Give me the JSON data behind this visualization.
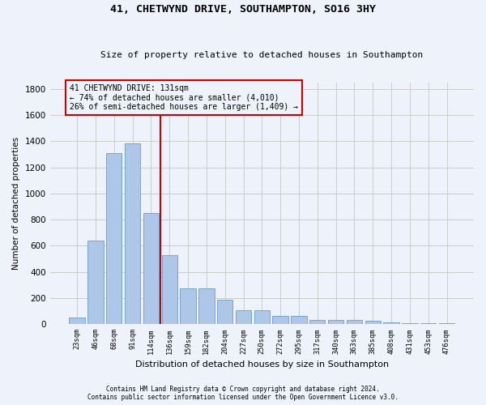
{
  "title": "41, CHETWYND DRIVE, SOUTHAMPTON, SO16 3HY",
  "subtitle": "Size of property relative to detached houses in Southampton",
  "xlabel": "Distribution of detached houses by size in Southampton",
  "ylabel": "Number of detached properties",
  "footnote1": "Contains HM Land Registry data © Crown copyright and database right 2024.",
  "footnote2": "Contains public sector information licensed under the Open Government Licence v3.0.",
  "annotation_line1": "41 CHETWYND DRIVE: 131sqm",
  "annotation_line2": "← 74% of detached houses are smaller (4,010)",
  "annotation_line3": "26% of semi-detached houses are larger (1,409) →",
  "bar_categories": [
    "23sqm",
    "46sqm",
    "68sqm",
    "91sqm",
    "114sqm",
    "136sqm",
    "159sqm",
    "182sqm",
    "204sqm",
    "227sqm",
    "250sqm",
    "272sqm",
    "295sqm",
    "317sqm",
    "340sqm",
    "363sqm",
    "385sqm",
    "408sqm",
    "431sqm",
    "453sqm",
    "476sqm"
  ],
  "bar_values": [
    50,
    640,
    1310,
    1380,
    850,
    530,
    275,
    275,
    185,
    105,
    105,
    65,
    65,
    35,
    35,
    30,
    25,
    15,
    10,
    10,
    10
  ],
  "bar_color": "#aec6e8",
  "bar_edge_color": "#5a8fc0",
  "vline_color": "#cc0000",
  "vline_index": 5,
  "grid_color": "#cccccc",
  "bg_color": "#eef2fa",
  "annotation_box_color": "#cc0000",
  "ylim": [
    0,
    1850
  ],
  "yticks": [
    0,
    200,
    400,
    600,
    800,
    1000,
    1200,
    1400,
    1600,
    1800
  ]
}
